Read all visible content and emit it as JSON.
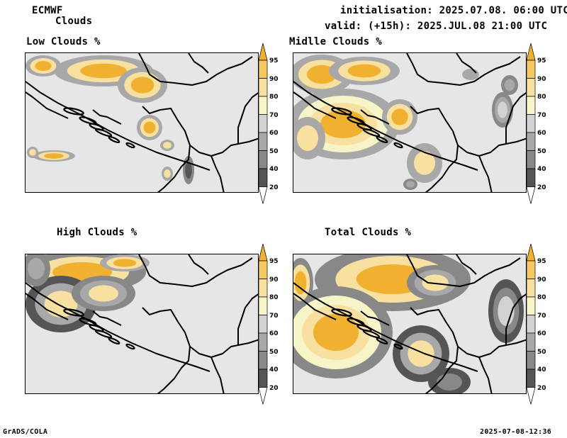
{
  "header": {
    "model": "ECMWF",
    "product": "Clouds",
    "init": "initialisation: 2025.07.08. 06:00 UTC",
    "valid": "valid: (+15h): 2025.JUL.08 21:00 UTC"
  },
  "panels": [
    {
      "title": "Low Clouds %"
    },
    {
      "title": "Midlle Clouds %"
    },
    {
      "title": "High Clouds %"
    },
    {
      "title": "Total Clouds %"
    }
  ],
  "colorbar": {
    "levels": [
      "95",
      "90",
      "80",
      "70",
      "60",
      "50",
      "40",
      "20"
    ],
    "colors": [
      "#f0b030",
      "#f5c860",
      "#f8e0a0",
      "#f7f5c8",
      "#d2d2d2",
      "#a8a8a8",
      "#888888",
      "#555555",
      "#ffffff"
    ]
  },
  "footer": {
    "left": "GrADS/COLA",
    "right": "2025-07-08-12:36"
  }
}
